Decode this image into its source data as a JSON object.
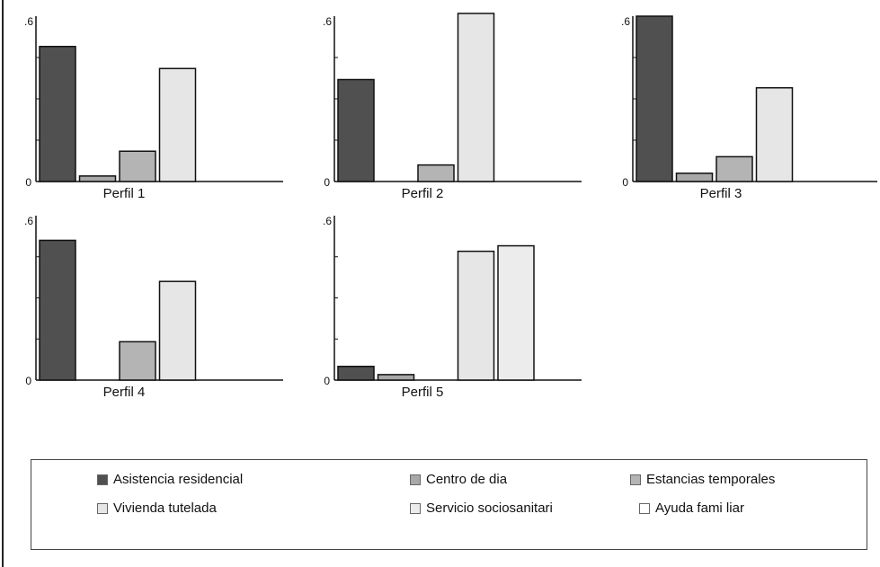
{
  "chart_data": {
    "type": "bar",
    "ylim": [
      0,
      0.6
    ],
    "y_tick_labels": {
      "min": "0",
      "max": ".6"
    },
    "series": [
      {
        "name": "Asistencia  residencial",
        "color": "#505050"
      },
      {
        "name": "Centro de  dia",
        "color": "#a8a8a8"
      },
      {
        "name": "Estancias  temporales",
        "color": "#b4b4b4"
      },
      {
        "name": "Vivienda tutelada",
        "color": "#e6e6e6"
      },
      {
        "name": "Servicio sociosanitari",
        "color": "#ececec"
      },
      {
        "name": "Ayuda fami liar",
        "color": "#ffffff"
      }
    ],
    "panels": [
      {
        "title": "Perfil 1",
        "values": [
          0.49,
          0.02,
          0.11,
          0.41,
          0.0,
          0.0
        ]
      },
      {
        "title": "Perfil 2",
        "values": [
          0.37,
          0.0,
          0.06,
          0.61,
          0.0,
          0.0
        ]
      },
      {
        "title": "Perfil 3",
        "values": [
          0.6,
          0.03,
          0.09,
          0.34,
          0.0,
          0.0
        ]
      },
      {
        "title": "Perfil 4",
        "values": [
          0.51,
          0.0,
          0.14,
          0.36,
          0.0,
          0.0
        ]
      },
      {
        "title": "Perfil 5",
        "values": [
          0.05,
          0.02,
          0.0,
          0.47,
          0.49,
          0.0
        ]
      }
    ]
  }
}
